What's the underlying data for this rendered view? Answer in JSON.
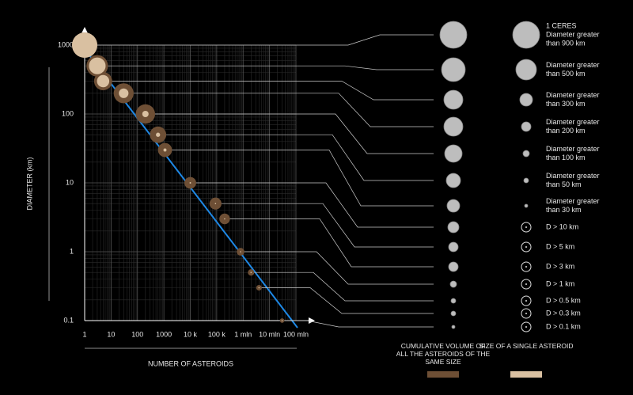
{
  "chart_data": {
    "type": "scatter",
    "x_label": "NUMBER OF ASTEROIDS",
    "y_label": "DIAMETER (km)",
    "log_x": true,
    "log_y": true,
    "grid": true,
    "xlim": [
      1,
      100000000
    ],
    "ylim": [
      0.1,
      1000
    ],
    "xticks": [
      1,
      10,
      100,
      1000,
      {
        "value": 10000,
        "label": "10 k"
      },
      {
        "value": 100000,
        "label": "100 k"
      },
      {
        "value": 1000000,
        "label": "1 mln"
      },
      {
        "value": 10000000,
        "label": "10 mln"
      },
      {
        "value": 100000000,
        "label": "100 mln"
      }
    ],
    "yticks": [
      0.1,
      1,
      10,
      100,
      1000
    ],
    "x": [
      1,
      3,
      5,
      30,
      200,
      600,
      1100,
      10000,
      90000,
      200000,
      800000,
      2000000,
      4000000,
      30000000
    ],
    "series": [
      {
        "name": "CUMULATIVE VOLUME OF ALL THE ASTEROIDS OF THE SAME SIZE",
        "color": "#6e4f35",
        "values": [
          1000,
          500,
          300,
          200,
          100,
          50,
          30,
          10,
          5,
          3,
          1,
          0.5,
          0.3,
          0.1
        ]
      },
      {
        "name": "SIZE OF A SINGLE ASTEROID",
        "color": "#d9c0a1",
        "values": [
          1000,
          500,
          300,
          200,
          100,
          50,
          30,
          10,
          5,
          3,
          1,
          0.5,
          0.3,
          0.1
        ]
      }
    ],
    "labels": [
      [
        "1 CERES",
        "Diameter greater",
        "than 900 km"
      ],
      [
        "Diameter greater",
        "than 500 km"
      ],
      [
        "Diameter greater",
        "than 300 km"
      ],
      [
        "Diameter greater",
        "than 200 km"
      ],
      [
        "Diameter greater",
        "than 100 km"
      ],
      [
        "Diameter greater",
        "than 50 km"
      ],
      [
        "Diameter greater",
        "than 30 km"
      ],
      [
        "D > 10 km"
      ],
      [
        "D > 5 km"
      ],
      [
        "D > 3 km"
      ],
      [
        "D > 1 km"
      ],
      [
        "D > 0.5 km"
      ],
      [
        "D > 0.3 km"
      ],
      [
        "D > 0.1 km"
      ]
    ]
  }
}
